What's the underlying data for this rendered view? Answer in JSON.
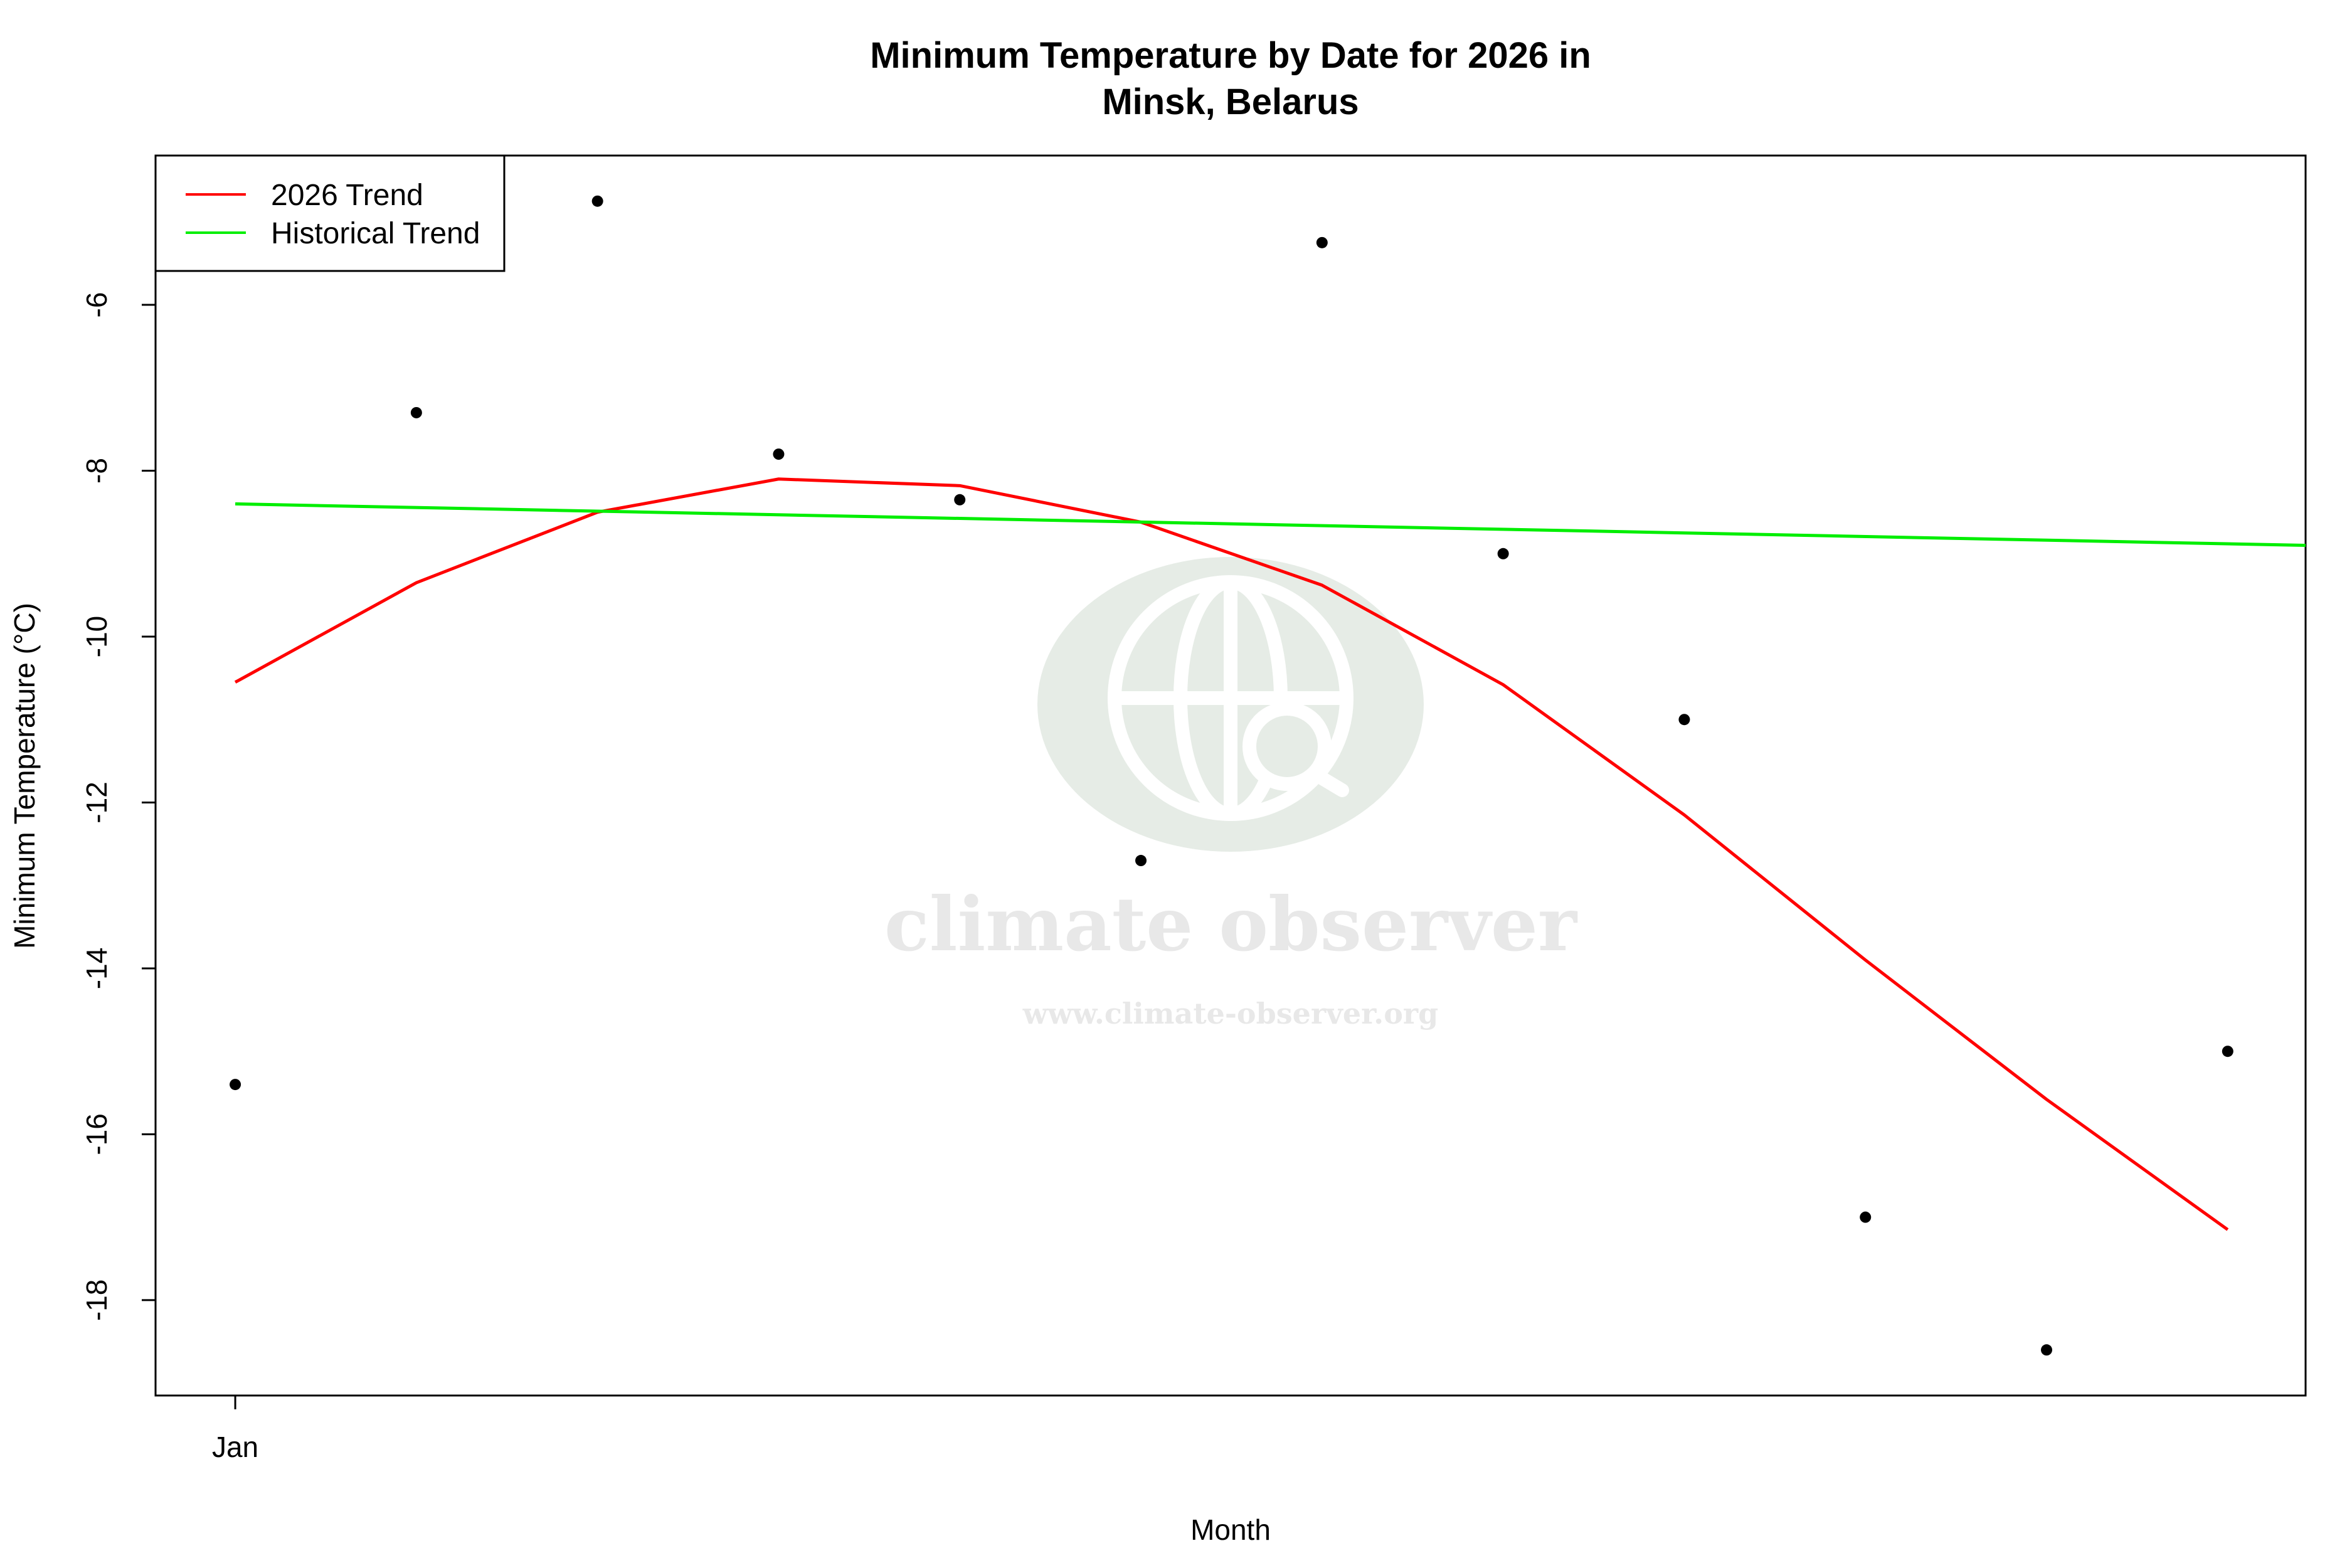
{
  "colors": {
    "trend_2026": "#ff0000",
    "historical_trend": "#00ee00",
    "points": "#000000",
    "watermark": "#e6ece6"
  },
  "watermark": {
    "icon": "globe-search-icon",
    "name": "climate observer",
    "url": "www.climate-observer.org"
  },
  "chart_data": {
    "type": "scatter",
    "title": "Minimum Temperature by Date for 2026 in",
    "subtitle": "Minsk, Belarus",
    "xlabel": "Month",
    "ylabel": "Minimum Temperature (°C)",
    "x_tick_labels": [
      "Jan"
    ],
    "x_tick_positions": [
      1
    ],
    "xlim": [
      0.56,
      12.43
    ],
    "ylim": [
      -19.15,
      -4.2
    ],
    "y_ticks": [
      -18,
      -16,
      -14,
      -12,
      -10,
      -8,
      -6
    ],
    "grid": false,
    "legend_position": "top-left",
    "series": [
      {
        "name": "",
        "kind": "points",
        "x": [
          1,
          2,
          3,
          4,
          5,
          6,
          7,
          8,
          9,
          10,
          11,
          12
        ],
        "y": [
          -15.4,
          -7.3,
          -4.75,
          -7.8,
          -8.35,
          -12.7,
          -5.25,
          -9.0,
          -11.0,
          -17.0,
          -18.6,
          -15.0
        ]
      },
      {
        "name": "2026 Trend",
        "kind": "line",
        "x": [
          1,
          2,
          3,
          4,
          5,
          6,
          7,
          8,
          9,
          10,
          11,
          12
        ],
        "y": [
          -10.55,
          -9.35,
          -8.5,
          -8.1,
          -8.18,
          -8.62,
          -9.38,
          -10.58,
          -12.15,
          -13.9,
          -15.58,
          -17.15
        ]
      },
      {
        "name": "Historical Trend",
        "kind": "line",
        "x": [
          1,
          12.43
        ],
        "y": [
          -8.4,
          -8.9
        ]
      }
    ]
  }
}
